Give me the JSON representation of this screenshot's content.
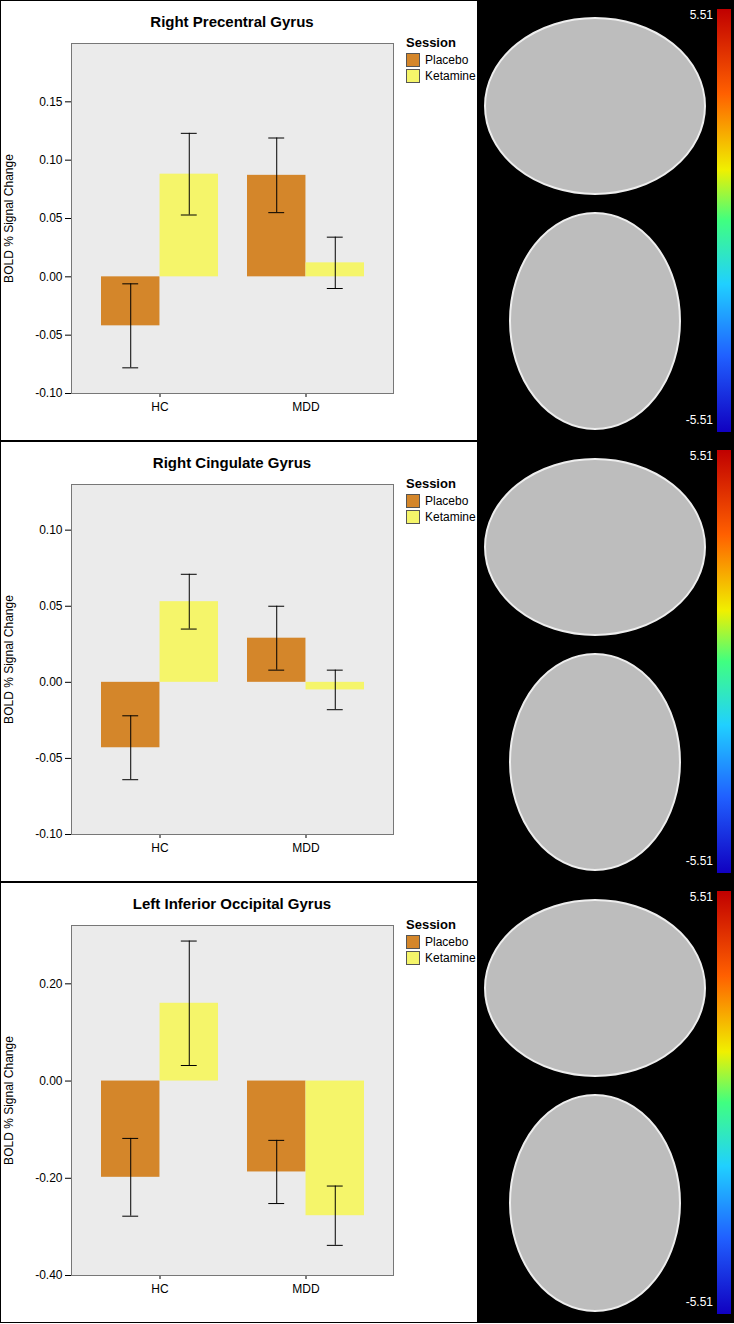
{
  "chart_data": [
    {
      "type": "bar",
      "title": "Right Precentral Gyrus",
      "y_label": "BOLD % Signal Change",
      "categories": [
        "HC",
        "MDD"
      ],
      "series": [
        {
          "name": "Placebo",
          "color": "#d4862a",
          "values": [
            -0.042,
            0.087
          ],
          "error_low": [
            -0.078,
            0.055
          ],
          "error_high": [
            -0.006,
            0.119
          ]
        },
        {
          "name": "Ketamine",
          "color": "#f5f56a",
          "values": [
            0.088,
            0.012
          ],
          "error_low": [
            0.053,
            -0.01
          ],
          "error_high": [
            0.123,
            0.034
          ]
        }
      ],
      "legend_title": "Session",
      "legend": "right",
      "ylim": [
        -0.1,
        0.2
      ],
      "yticks": [
        {
          "value": -0.1,
          "label": "-0.10"
        },
        {
          "value": -0.05,
          "label": "-0.05"
        },
        {
          "value": 0,
          "label": "0.00"
        },
        {
          "value": 0.05,
          "label": "0.05"
        },
        {
          "value": 0.1,
          "label": "0.10"
        },
        {
          "value": 0.15,
          "label": "0.15"
        }
      ],
      "grid": false,
      "colorbar": {
        "range": [
          -5.51,
          5.51
        ],
        "ticks": [
          -5.51,
          5.51
        ]
      }
    },
    {
      "type": "bar",
      "title": "Right Cingulate Gyrus",
      "y_label": "BOLD % Signal Change",
      "categories": [
        "HC",
        "MDD"
      ],
      "series": [
        {
          "name": "Placebo",
          "color": "#d4862a",
          "values": [
            -0.043,
            0.029
          ],
          "error_low": [
            -0.064,
            0.008
          ],
          "error_high": [
            -0.022,
            0.05
          ]
        },
        {
          "name": "Ketamine",
          "color": "#f5f56a",
          "values": [
            0.053,
            -0.005
          ],
          "error_low": [
            0.035,
            -0.018
          ],
          "error_high": [
            0.071,
            0.008
          ]
        }
      ],
      "legend_title": "Session",
      "legend": "right",
      "ylim": [
        -0.1,
        0.13
      ],
      "yticks": [
        {
          "value": -0.1,
          "label": "-0.10"
        },
        {
          "value": -0.05,
          "label": "-0.05"
        },
        {
          "value": 0,
          "label": "0.00"
        },
        {
          "value": 0.05,
          "label": "0.05"
        },
        {
          "value": 0.1,
          "label": "0.10"
        }
      ],
      "grid": false,
      "colorbar": {
        "range": [
          -5.51,
          5.51
        ],
        "ticks": [
          -5.51,
          5.51
        ]
      }
    },
    {
      "type": "bar",
      "title": "Left Inferior Occipital Gyrus",
      "y_label": "BOLD % Signal Change",
      "categories": [
        "HC",
        "MDD"
      ],
      "series": [
        {
          "name": "Placebo",
          "color": "#d4862a",
          "values": [
            -0.198,
            -0.187
          ],
          "error_low": [
            -0.278,
            -0.252
          ],
          "error_high": [
            -0.118,
            -0.122
          ]
        },
        {
          "name": "Ketamine",
          "color": "#f5f56a",
          "values": [
            0.16,
            -0.277
          ],
          "error_low": [
            0.032,
            -0.338
          ],
          "error_high": [
            0.288,
            -0.216
          ]
        }
      ],
      "legend_title": "Session",
      "legend": "right",
      "ylim": [
        -0.4,
        0.32
      ],
      "yticks": [
        {
          "value": -0.4,
          "label": "-0.40"
        },
        {
          "value": -0.2,
          "label": "-0.20"
        },
        {
          "value": 0,
          "label": "0.00"
        },
        {
          "value": 0.2,
          "label": "0.20"
        }
      ],
      "grid": false,
      "colorbar": {
        "range": [
          -5.51,
          5.51
        ],
        "ticks": [
          -5.51,
          5.51
        ]
      }
    }
  ]
}
